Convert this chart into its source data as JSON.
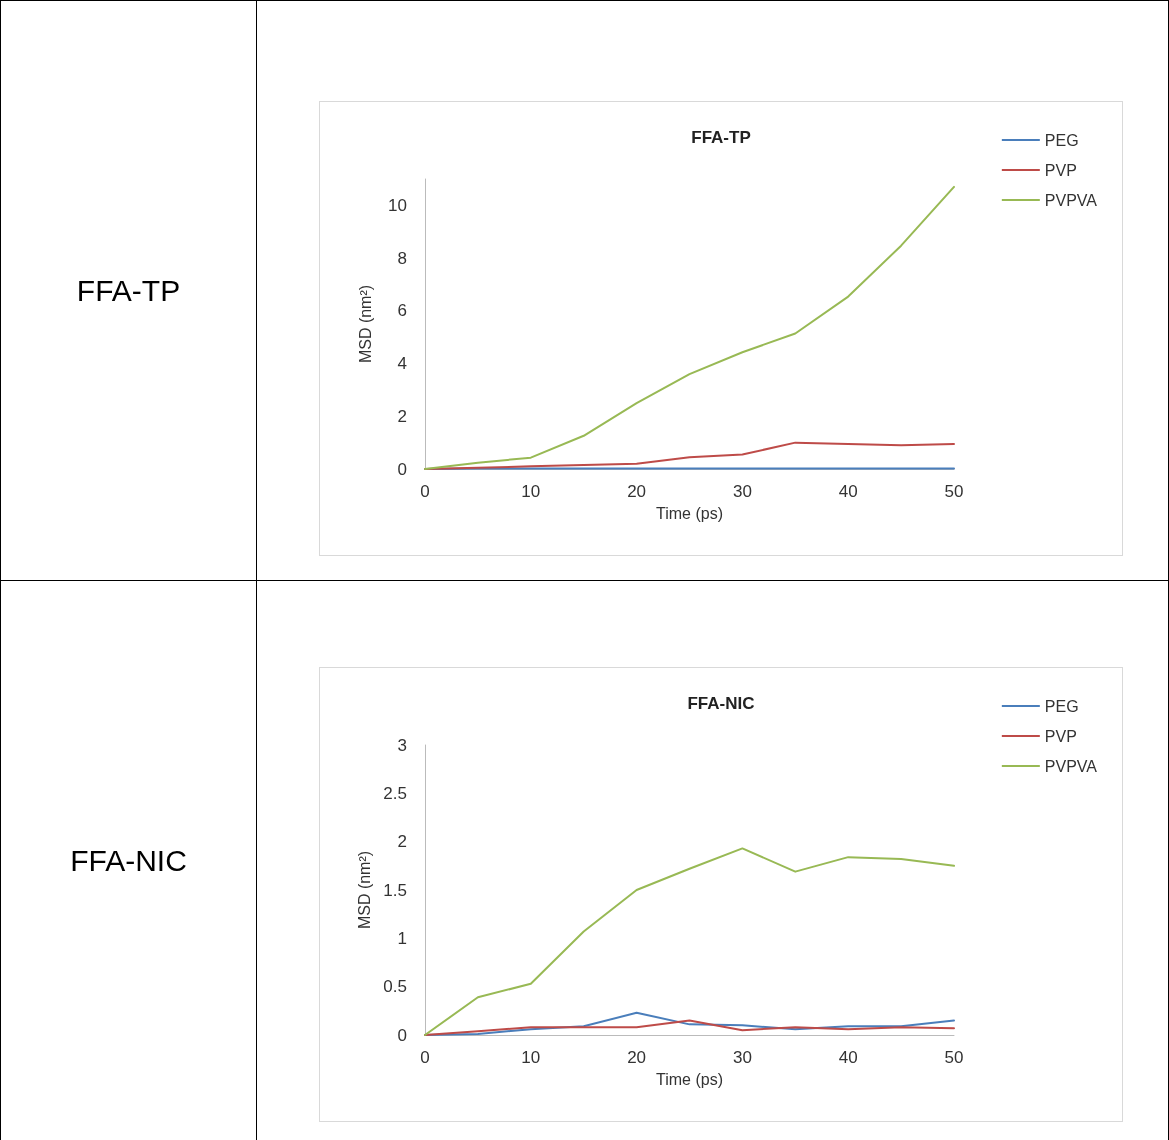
{
  "chart_data": [
    {
      "type": "line",
      "title": "FFA-TP",
      "xlabel": "Time (ps)",
      "ylabel": "MSD (nm²)",
      "annotations": [
        "FFA-TP"
      ],
      "x": [
        0,
        5,
        10,
        15,
        20,
        25,
        30,
        35,
        40,
        45,
        50
      ],
      "xlim": [
        0,
        50
      ],
      "xticks": [
        0,
        10,
        20,
        30,
        40,
        50
      ],
      "ylim": [
        0,
        11
      ],
      "yticks": [
        0,
        2,
        4,
        6,
        8,
        10
      ],
      "grid": false,
      "legend": "top right",
      "marker": "none",
      "series": [
        {
          "name": "PEG",
          "color": "#4a7ebb",
          "values": [
            0,
            0.02,
            0.02,
            0.02,
            0.02,
            0.02,
            0.02,
            0.02,
            0.02,
            0.02,
            0.02
          ]
        },
        {
          "name": "PVP",
          "color": "#be4b48",
          "values": [
            0,
            0.05,
            0.1,
            0.15,
            0.2,
            0.45,
            0.55,
            1.0,
            0.95,
            0.9,
            0.95
          ]
        },
        {
          "name": "PVPVA",
          "color": "#98b954",
          "values": [
            0,
            0.24,
            0.43,
            1.26,
            2.5,
            3.6,
            4.43,
            5.14,
            6.54,
            8.47,
            10.7
          ]
        }
      ]
    },
    {
      "type": "line",
      "title": "FFA-NIC",
      "xlabel": "Time (ps)",
      "ylabel": "MSD (nm²)",
      "annotations": [
        "FFA-NIC"
      ],
      "x": [
        0,
        5,
        10,
        15,
        20,
        25,
        30,
        35,
        40,
        45,
        50
      ],
      "xlim": [
        0,
        50
      ],
      "xticks": [
        0,
        10,
        20,
        30,
        40,
        50
      ],
      "ylim": [
        0,
        3
      ],
      "yticks": [
        0,
        0.5,
        1,
        1.5,
        2,
        2.5,
        3
      ],
      "grid": false,
      "legend": "top right",
      "marker": "none",
      "series": [
        {
          "name": "PEG",
          "color": "#4a7ebb",
          "values": [
            0,
            0.01,
            0.06,
            0.09,
            0.23,
            0.11,
            0.1,
            0.06,
            0.09,
            0.09,
            0.15
          ]
        },
        {
          "name": "PVP",
          "color": "#be4b48",
          "values": [
            0,
            0.04,
            0.08,
            0.08,
            0.08,
            0.15,
            0.05,
            0.08,
            0.06,
            0.08,
            0.07
          ]
        },
        {
          "name": "PVPVA",
          "color": "#98b954",
          "values": [
            0,
            0.39,
            0.53,
            1.07,
            1.5,
            1.72,
            1.93,
            1.69,
            1.84,
            1.82,
            1.75
          ]
        }
      ]
    }
  ]
}
